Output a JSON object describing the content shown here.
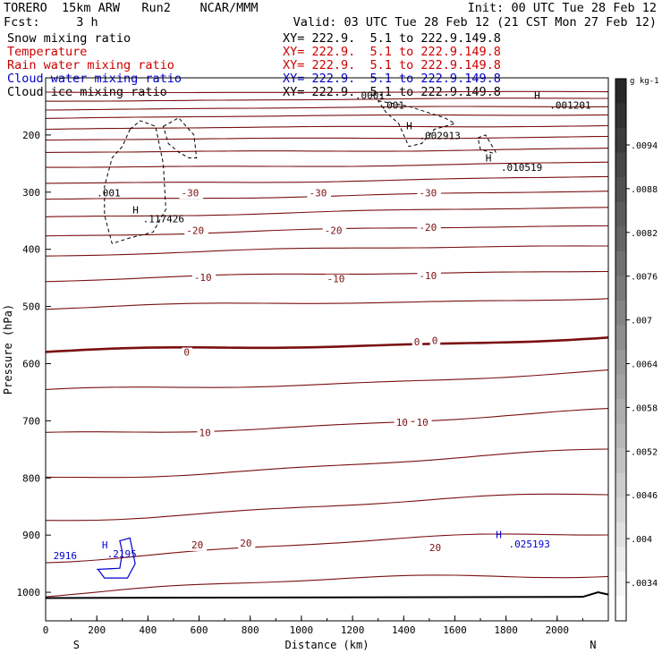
{
  "header": {
    "title_left": "TORERO  15km ARW   Run2    NCAR/MMM",
    "init": "Init: 00 UTC Tue 28 Feb 12",
    "fcst": "Fcst:     3 h",
    "valid": "Valid: 03 UTC Tue 28 Feb 12 (21 CST Mon 27 Feb 12)"
  },
  "fields": [
    {
      "label": "Snow mixing ratio",
      "xy": "XY= 222.9.  5.1 to 222.9.149.8",
      "color": "#000000"
    },
    {
      "label": "Temperature",
      "xy": "XY= 222.9.  5.1 to 222.9.149.8",
      "color": "#cc0000"
    },
    {
      "label": "Rain water mixing ratio",
      "xy": "XY= 222.9.  5.1 to 222.9.149.8",
      "color": "#cc0000"
    },
    {
      "label": "Cloud water mixing ratio",
      "xy": "XY= 222.9.  5.1 to 222.9.149.8",
      "color": "#0000cc"
    },
    {
      "label": "Cloud ice mixing ratio",
      "xy": "XY= 222.9.  5.1 to 222.9.149.8",
      "color": "#000000"
    }
  ],
  "chart_data": {
    "type": "contour-cross-section",
    "xlabel": "Distance (km)",
    "ylabel": "Pressure (hPa)",
    "xlim": [
      0,
      2200
    ],
    "ylim": [
      1050,
      100
    ],
    "xticks": [
      0,
      200,
      400,
      600,
      800,
      1000,
      1200,
      1400,
      1600,
      1800,
      2000
    ],
    "yticks": [
      200,
      300,
      400,
      500,
      600,
      700,
      800,
      900,
      1000
    ],
    "end_labels": {
      "left": "S",
      "right": "N"
    },
    "colorbar": {
      "unit": "g kg-1",
      "ticks": [
        ".0094",
        ".0088",
        ".0082",
        ".0076",
        ".007",
        ".0064",
        ".0058",
        ".0052",
        ".0046",
        ".004",
        ".0034"
      ]
    },
    "temperature_contours": {
      "color": "#7a1010",
      "interval_c": 5,
      "isotherms": [
        {
          "p": 125,
          "slope": 0
        },
        {
          "p": 140,
          "slope": -4
        },
        {
          "p": 155,
          "slope": -5
        },
        {
          "p": 170,
          "slope": -6
        },
        {
          "p": 190,
          "slope": -7
        },
        {
          "p": 210,
          "slope": -8
        },
        {
          "p": 232,
          "slope": -9
        },
        {
          "p": 258,
          "slope": -10
        },
        {
          "p": 285,
          "slope": -11
        },
        {
          "p": 312,
          "slope": -12
        },
        {
          "p": 342,
          "slope": -14
        },
        {
          "p": 375,
          "slope": -16
        },
        {
          "p": 410,
          "slope": -18
        },
        {
          "p": 455,
          "slope": -20
        },
        {
          "p": 505,
          "slope": -22
        },
        {
          "p": 582,
          "slope": -28,
          "bold": true
        },
        {
          "p": 650,
          "slope": -35
        },
        {
          "p": 725,
          "slope": -40
        },
        {
          "p": 800,
          "slope": -45
        },
        {
          "p": 870,
          "slope": -40
        },
        {
          "p": 940,
          "slope": -45
        },
        {
          "p": 1000,
          "slope": -35
        }
      ],
      "labels": [
        {
          "x": 530,
          "p": 307,
          "text": "-30"
        },
        {
          "x": 1030,
          "p": 307,
          "text": "-30"
        },
        {
          "x": 1460,
          "p": 307,
          "text": "-30"
        },
        {
          "x": 550,
          "p": 373,
          "text": "-20"
        },
        {
          "x": 1090,
          "p": 373,
          "text": "-20"
        },
        {
          "x": 1460,
          "p": 368,
          "text": "-20"
        },
        {
          "x": 580,
          "p": 455,
          "text": "-10"
        },
        {
          "x": 1100,
          "p": 458,
          "text": "-10"
        },
        {
          "x": 1460,
          "p": 452,
          "text": "-10"
        },
        {
          "x": 540,
          "p": 586,
          "text": "0"
        },
        {
          "x": 1440,
          "p": 568,
          "text": "0"
        },
        {
          "x": 1510,
          "p": 566,
          "text": "0"
        },
        {
          "x": 600,
          "p": 727,
          "text": "10"
        },
        {
          "x": 1370,
          "p": 709,
          "text": "10"
        },
        {
          "x": 1450,
          "p": 709,
          "text": "10"
        },
        {
          "x": 570,
          "p": 923,
          "text": "20"
        },
        {
          "x": 760,
          "p": 920,
          "text": "20"
        },
        {
          "x": 1500,
          "p": 928,
          "text": "20"
        }
      ]
    },
    "extrema_labels": [
      {
        "x": 340,
        "p": 337,
        "text": "H",
        "color": "#000000"
      },
      {
        "x": 380,
        "p": 353,
        "text": ".117426",
        "color": "#000000"
      },
      {
        "x": 200,
        "p": 307,
        "text": ".001",
        "color": "#000000"
      },
      {
        "x": 1410,
        "p": 190,
        "text": "H",
        "color": "#000000"
      },
      {
        "x": 1460,
        "p": 207,
        "text": ".002913",
        "color": "#000000"
      },
      {
        "x": 1310,
        "p": 154,
        "text": ".001",
        "color": "#000000"
      },
      {
        "x": 1910,
        "p": 137,
        "text": "H",
        "color": "#000000"
      },
      {
        "x": 1970,
        "p": 154,
        "text": ".001201",
        "color": "#000000"
      },
      {
        "x": 1720,
        "p": 246,
        "text": "H",
        "color": "#000000"
      },
      {
        "x": 1780,
        "p": 263,
        "text": ".010519",
        "color": "#000000"
      },
      {
        "x": 1760,
        "p": 905,
        "text": "H",
        "color": "#0000cc"
      },
      {
        "x": 1810,
        "p": 922,
        "text": ".025193",
        "color": "#0000cc"
      },
      {
        "x": 220,
        "p": 923,
        "text": "H",
        "color": "#0000cc"
      },
      {
        "x": 240,
        "p": 939,
        "text": ".2195",
        "color": "#0000cc"
      },
      {
        "x": 30,
        "p": 942,
        "text": "2916",
        "color": "#0000cc"
      },
      {
        "x": 1210,
        "p": 137,
        "text": ".0001",
        "color": "#000000"
      }
    ]
  }
}
